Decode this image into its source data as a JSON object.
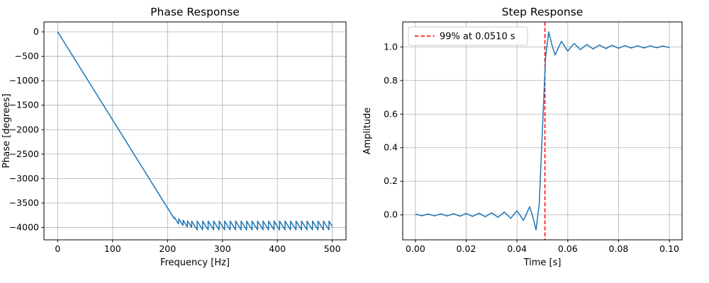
{
  "figure": {
    "background": "#ffffff",
    "line_blue": "#1f77b4",
    "threshold_red": "#ff0000",
    "grid_color": "#b0b0b0"
  },
  "chart_data": [
    {
      "type": "line",
      "title": "Phase Response",
      "xlabel": "Frequency [Hz]",
      "ylabel": "Phase [degrees]",
      "xlim": [
        -25,
        525
      ],
      "ylim": [
        -4252.5,
        202.5
      ],
      "xticks": [
        0,
        100,
        200,
        300,
        400,
        500
      ],
      "xticklabels": [
        "0",
        "100",
        "200",
        "300",
        "400",
        "500"
      ],
      "yticks": [
        0,
        -500,
        -1000,
        -1500,
        -2000,
        -2500,
        -3000,
        -3500,
        -4000
      ],
      "yticklabels": [
        "0",
        "−500",
        "−1000",
        "−1500",
        "−2000",
        "−2500",
        "−3000",
        "−3500",
        "−4000"
      ],
      "grid": true,
      "grid_color": "#b0b0b0",
      "series": [
        {
          "name": "phase-response-line",
          "color": "#1f77b4",
          "points": [
            [
              0,
              0
            ],
            [
              212,
              -3816
            ],
            [
              212.5,
              -3792
            ],
            [
              220,
              -3927
            ],
            [
              220.5,
              -3822
            ],
            [
              228,
              -3957
            ],
            [
              228.5,
              -3852
            ],
            [
              236,
              -3987
            ],
            [
              236.5,
              -3864
            ],
            [
              244,
              -4000
            ],
            [
              244,
              -3868
            ],
            [
              254,
              -4048
            ],
            [
              254,
              -3868
            ],
            [
              264,
              -4048
            ],
            [
              264,
              -3868
            ],
            [
              274,
              -4048
            ],
            [
              274,
              -3868
            ],
            [
              284,
              -4048
            ],
            [
              284,
              -3868
            ],
            [
              294,
              -4048
            ],
            [
              294,
              -3868
            ],
            [
              304,
              -4048
            ],
            [
              304,
              -3868
            ],
            [
              314,
              -4048
            ],
            [
              314,
              -3868
            ],
            [
              324,
              -4048
            ],
            [
              324,
              -3868
            ],
            [
              334,
              -4048
            ],
            [
              334,
              -3868
            ],
            [
              344,
              -4048
            ],
            [
              344,
              -3868
            ],
            [
              354,
              -4048
            ],
            [
              354,
              -3868
            ],
            [
              364,
              -4048
            ],
            [
              364,
              -3868
            ],
            [
              374,
              -4048
            ],
            [
              374,
              -3868
            ],
            [
              384,
              -4048
            ],
            [
              384,
              -3868
            ],
            [
              394,
              -4048
            ],
            [
              394,
              -3868
            ],
            [
              404,
              -4048
            ],
            [
              404,
              -3868
            ],
            [
              414,
              -4048
            ],
            [
              414,
              -3868
            ],
            [
              424,
              -4048
            ],
            [
              424,
              -3868
            ],
            [
              434,
              -4048
            ],
            [
              434,
              -3868
            ],
            [
              444,
              -4048
            ],
            [
              444,
              -3868
            ],
            [
              454,
              -4048
            ],
            [
              454,
              -3868
            ],
            [
              464,
              -4048
            ],
            [
              464,
              -3868
            ],
            [
              474,
              -4048
            ],
            [
              474,
              -3868
            ],
            [
              484,
              -4048
            ],
            [
              484,
              -3868
            ],
            [
              494,
              -4048
            ],
            [
              494,
              -3868
            ],
            [
              500,
              -3976
            ]
          ]
        }
      ]
    },
    {
      "type": "line",
      "title": "Step Response",
      "xlabel": "Time [s]",
      "ylabel": "Amplitude",
      "xlim": [
        -0.005,
        0.105
      ],
      "ylim": [
        -0.1485,
        1.1485
      ],
      "xticks": [
        0,
        0.02,
        0.04,
        0.06,
        0.08,
        0.1
      ],
      "xticklabels": [
        "0.00",
        "0.02",
        "0.04",
        "0.06",
        "0.08",
        "0.10"
      ],
      "yticks": [
        0,
        0.2,
        0.4,
        0.6,
        0.8,
        1.0
      ],
      "yticklabels": [
        "0.0",
        "0.2",
        "0.4",
        "0.6",
        "0.8",
        "1.0"
      ],
      "grid": true,
      "grid_color": "#b0b0b0",
      "vline": {
        "x": 0.051,
        "color": "#ff0000",
        "style": "dashed"
      },
      "legend": {
        "position": "upper-left",
        "entries": [
          {
            "label": "99% at 0.0510 s",
            "color": "#ff0000",
            "dash": true
          }
        ]
      },
      "series": [
        {
          "name": "step-response-line",
          "color": "#1f77b4",
          "points": [
            [
              0,
              0.005
            ],
            [
              0.00125,
              0
            ],
            [
              0.0025,
              -0.0053
            ],
            [
              0.00375,
              0
            ],
            [
              0.005,
              0.0056
            ],
            [
              0.00625,
              0
            ],
            [
              0.0075,
              -0.006
            ],
            [
              0.00875,
              0.0001
            ],
            [
              0.01,
              0.0063
            ],
            [
              0.01125,
              -0.0001
            ],
            [
              0.0125,
              -0.0068
            ],
            [
              0.01375,
              0.0001
            ],
            [
              0.015,
              0.0072
            ],
            [
              0.01625,
              -0.0001
            ],
            [
              0.0175,
              -0.0078
            ],
            [
              0.01875,
              0.0002
            ],
            [
              0.02,
              0.0084
            ],
            [
              0.02125,
              -0.0002
            ],
            [
              0.0225,
              -0.0092
            ],
            [
              0.02375,
              0.0003
            ],
            [
              0.025,
              0.0101
            ],
            [
              0.02625,
              -0.0003
            ],
            [
              0.0275,
              -0.0112
            ],
            [
              0.02875,
              0.0004
            ],
            [
              0.03,
              0.0127
            ],
            [
              0.03125,
              -0.0006
            ],
            [
              0.0325,
              -0.0144
            ],
            [
              0.03375,
              0.0008
            ],
            [
              0.035,
              0.0169
            ],
            [
              0.03625,
              -0.0011
            ],
            [
              0.0375,
              -0.02
            ],
            [
              0.03875,
              0.0016
            ],
            [
              0.04,
              0.025
            ],
            [
              0.04125,
              -0.0024
            ],
            [
              0.0425,
              -0.0331
            ],
            [
              0.04375,
              0.0066
            ],
            [
              0.045,
              0.0486
            ],
            [
              0.04625,
              -0.0125
            ],
            [
              0.0475,
              -0.0895
            ],
            [
              0.04875,
              0.0637
            ],
            [
              0.05,
              0.5
            ],
            [
              0.05125,
              0.9363
            ],
            [
              0.0525,
              1.0895
            ],
            [
              0.05375,
              1.0125
            ],
            [
              0.055,
              0.9514
            ],
            [
              0.05625,
              0.9934
            ],
            [
              0.0575,
              1.0331
            ],
            [
              0.05875,
              1.0024
            ],
            [
              0.06,
              0.975
            ],
            [
              0.06125,
              0.9984
            ],
            [
              0.0625,
              1.02
            ],
            [
              0.06375,
              1.0011
            ],
            [
              0.065,
              0.9831
            ],
            [
              0.06625,
              0.9992
            ],
            [
              0.0675,
              1.0144
            ],
            [
              0.06875,
              1.0006
            ],
            [
              0.07,
              0.9873
            ],
            [
              0.07125,
              0.9996
            ],
            [
              0.0725,
              1.0112
            ],
            [
              0.07375,
              1.0003
            ],
            [
              0.075,
              0.9899
            ],
            [
              0.07625,
              0.9997
            ],
            [
              0.0775,
              1.0092
            ],
            [
              0.07875,
              1.0002
            ],
            [
              0.08,
              0.9916
            ],
            [
              0.08125,
              0.9998
            ],
            [
              0.0825,
              1.0078
            ],
            [
              0.08375,
              1.0001
            ],
            [
              0.085,
              0.9928
            ],
            [
              0.08625,
              0.9999
            ],
            [
              0.0875,
              1.0068
            ],
            [
              0.08875,
              1.0001
            ],
            [
              0.09,
              0.9937
            ],
            [
              0.09125,
              0.9999
            ],
            [
              0.0925,
              1.006
            ],
            [
              0.09375,
              1
            ],
            [
              0.095,
              0.9944
            ],
            [
              0.09625,
              1
            ],
            [
              0.0975,
              1.0053
            ],
            [
              0.09875,
              1
            ],
            [
              0.1,
              0.995
            ]
          ]
        }
      ]
    }
  ]
}
